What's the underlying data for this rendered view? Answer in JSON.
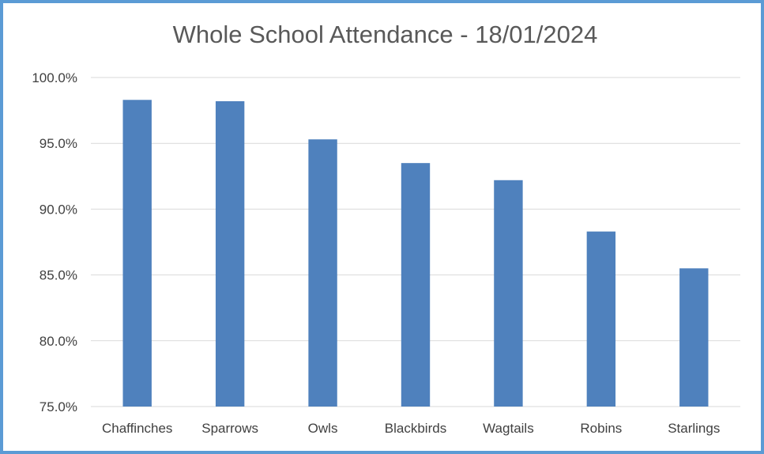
{
  "chart_data": {
    "type": "bar",
    "title": "Whole School Attendance - 18/01/2024",
    "xlabel": "",
    "ylabel": "",
    "categories": [
      "Chaffinches",
      "Sparrows",
      "Owls",
      "Blackbirds",
      "Wagtails",
      "Robins",
      "Starlings"
    ],
    "values": [
      98.3,
      98.2,
      95.3,
      93.5,
      92.2,
      88.3,
      85.5
    ],
    "ylim": [
      75,
      100
    ],
    "yticks": [
      "75.0%",
      "80.0%",
      "85.0%",
      "90.0%",
      "95.0%",
      "100.0%"
    ],
    "ytick_values": [
      75,
      80,
      85,
      90,
      95,
      100
    ],
    "grid": true,
    "legend": "none",
    "bar_color": "#4f81bd",
    "gridline_color": "#d9d9d9",
    "border_color": "#5b9bd5"
  }
}
